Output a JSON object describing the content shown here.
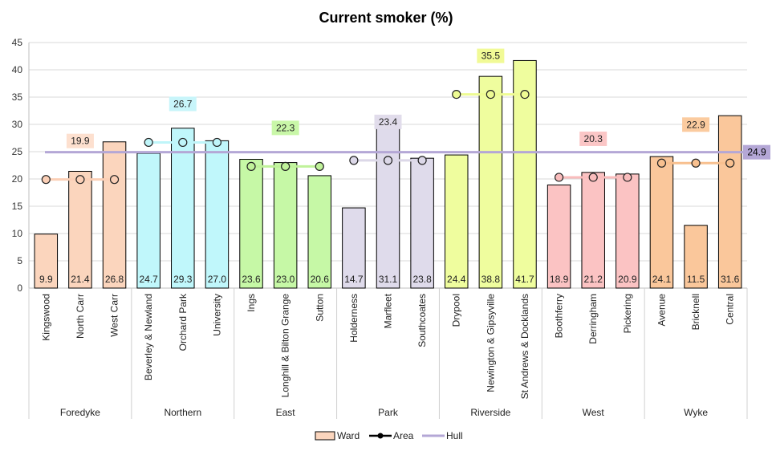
{
  "chart_data": {
    "type": "bar",
    "title": "Current smoker (%)",
    "ylim": [
      0,
      45
    ],
    "yticks": [
      0,
      5,
      10,
      15,
      20,
      25,
      30,
      35,
      40,
      45
    ],
    "grid": true,
    "legend_position": "bottom",
    "groups": [
      {
        "name": "Foredyke",
        "color": "#fbd5bd",
        "avg_color": "#fbcfb6",
        "label_bg": "#fde0cf",
        "avg": 19.9,
        "wards": [
          {
            "name": "Kingswood",
            "value": 9.9
          },
          {
            "name": "North Carr",
            "value": 21.4
          },
          {
            "name": "West Carr",
            "value": 26.8
          }
        ]
      },
      {
        "name": "Northern",
        "color": "#c0f7fb",
        "avg_color": "#bff5f9",
        "label_bg": "#c8f5fa",
        "avg": 26.7,
        "wards": [
          {
            "name": "Beverley & Newland",
            "value": 24.7
          },
          {
            "name": "Orchard Park",
            "value": 29.3
          },
          {
            "name": "University",
            "value": 27.0
          }
        ]
      },
      {
        "name": "East",
        "color": "#c6f8a6",
        "avg_color": "#c0f29a",
        "label_bg": "#c9f7a8",
        "avg": 22.3,
        "wards": [
          {
            "name": "Ings",
            "value": 23.6
          },
          {
            "name": "Longhill & Bilton Grange",
            "value": 23.0
          },
          {
            "name": "Sutton",
            "value": 20.6
          }
        ]
      },
      {
        "name": "Park",
        "color": "#dfdbeb",
        "avg_color": "#dcd8e8",
        "label_bg": "#e1dceb",
        "avg": 23.4,
        "wards": [
          {
            "name": "Holderness",
            "value": 14.7
          },
          {
            "name": "Marfleet",
            "value": 31.1
          },
          {
            "name": "Southcoates",
            "value": 23.8
          }
        ]
      },
      {
        "name": "Riverside",
        "color": "#effd9e",
        "avg_color": "#eefb93",
        "label_bg": "#f1fa96",
        "avg": 35.5,
        "wards": [
          {
            "name": "Drypool",
            "value": 24.4
          },
          {
            "name": "Newington & Gipsyville",
            "value": 38.8
          },
          {
            "name": "St Andrews & Docklands",
            "value": 41.7
          }
        ]
      },
      {
        "name": "West",
        "color": "#fbc3c3",
        "avg_color": "#f9bcbc",
        "label_bg": "#fbc6c6",
        "avg": 20.3,
        "wards": [
          {
            "name": "Boothferry",
            "value": 18.9
          },
          {
            "name": "Derringham",
            "value": 21.2
          },
          {
            "name": "Pickering",
            "value": 20.9
          }
        ]
      },
      {
        "name": "Wyke",
        "color": "#fac79b",
        "avg_color": "#f8c08f",
        "label_bg": "#fbcb9f",
        "avg": 22.9,
        "wards": [
          {
            "name": "Avenue",
            "value": 24.1
          },
          {
            "name": "Bricknell",
            "value": 11.5
          },
          {
            "name": "Central",
            "value": 31.6
          }
        ]
      }
    ],
    "reference": {
      "name": "Hull",
      "value": 24.9,
      "color": "#b4a7d6",
      "label": "24.9"
    },
    "legend": [
      {
        "name": "Ward",
        "kind": "box",
        "color": "#fbd5bd"
      },
      {
        "name": "Area",
        "kind": "line-dot",
        "color": "#000000"
      },
      {
        "name": "Hull",
        "kind": "line",
        "color": "#b4a7d6"
      }
    ]
  }
}
